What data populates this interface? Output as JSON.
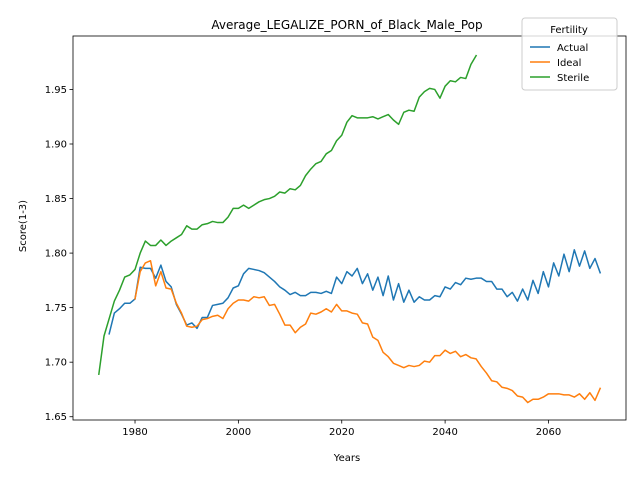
{
  "chart_data": {
    "type": "line",
    "title": "Average_LEGALIZE_PORN_of_Black_Male_Pop",
    "xlabel": "Years",
    "ylabel": "Score(1-3)",
    "xlim": [
      1968,
      2075
    ],
    "ylim": [
      1.647,
      1.999
    ],
    "xticks": [
      1980,
      2000,
      2020,
      2040,
      2060
    ],
    "yticks": [
      1.65,
      1.7,
      1.75,
      1.8,
      1.85,
      1.9,
      1.95
    ],
    "ytick_labels": [
      "1.65",
      "1.70",
      "1.75",
      "1.80",
      "1.85",
      "1.90",
      "1.95"
    ],
    "grid": false,
    "legend": {
      "title": "Fertility",
      "placement": "top-right"
    },
    "series": [
      {
        "name": "Actual",
        "color": "#1f77b4",
        "x": [
          1975,
          1976,
          1977,
          1978,
          1979,
          1980,
          1981,
          1982,
          1983,
          1984,
          1985,
          1986,
          1987,
          1988,
          1989,
          1990,
          1991,
          1992,
          1993,
          1994,
          1995,
          1996,
          1997,
          1998,
          1999,
          2000,
          2001,
          2002,
          2003,
          2004,
          2005,
          2006,
          2007,
          2008,
          2009,
          2010,
          2011,
          2012,
          2013,
          2014,
          2015,
          2016,
          2017,
          2018,
          2019,
          2020,
          2021,
          2022,
          2023,
          2024,
          2025,
          2026,
          2027,
          2028,
          2029,
          2030,
          2031,
          2032,
          2033,
          2034,
          2035,
          2036,
          2037,
          2038,
          2039,
          2040,
          2041,
          2042,
          2043,
          2044,
          2045,
          2046,
          2047,
          2048,
          2049,
          2050,
          2051,
          2052,
          2053,
          2054,
          2055,
          2056,
          2057,
          2058,
          2059,
          2060,
          2061,
          2062,
          2063,
          2064,
          2065,
          2066,
          2067,
          2068,
          2069,
          2070
        ],
        "values": [
          1.726,
          1.745,
          1.749,
          1.754,
          1.754,
          1.758,
          1.787,
          1.786,
          1.786,
          1.777,
          1.789,
          1.774,
          1.769,
          1.753,
          1.744,
          1.734,
          1.736,
          1.731,
          1.741,
          1.741,
          1.752,
          1.753,
          1.754,
          1.759,
          1.768,
          1.77,
          1.781,
          1.786,
          1.785,
          1.784,
          1.782,
          1.778,
          1.774,
          1.769,
          1.766,
          1.762,
          1.764,
          1.761,
          1.761,
          1.764,
          1.764,
          1.763,
          1.765,
          1.763,
          1.778,
          1.772,
          1.783,
          1.779,
          1.786,
          1.772,
          1.781,
          1.766,
          1.778,
          1.761,
          1.779,
          1.757,
          1.772,
          1.755,
          1.766,
          1.755,
          1.76,
          1.757,
          1.757,
          1.761,
          1.76,
          1.769,
          1.767,
          1.773,
          1.771,
          1.777,
          1.776,
          1.777,
          1.777,
          1.774,
          1.774,
          1.767,
          1.767,
          1.76,
          1.764,
          1.756,
          1.767,
          1.757,
          1.775,
          1.763,
          1.783,
          1.769,
          1.791,
          1.779,
          1.799,
          1.783,
          1.803,
          1.788,
          1.802,
          1.786,
          1.795,
          1.782
        ]
      },
      {
        "name": "Ideal",
        "color": "#ff7f0e",
        "x": [
          1980,
          1981,
          1982,
          1983,
          1984,
          1985,
          1986,
          1987,
          1988,
          1989,
          1990,
          1991,
          1992,
          1993,
          1994,
          1995,
          1996,
          1997,
          1998,
          1999,
          2000,
          2001,
          2002,
          2003,
          2004,
          2005,
          2006,
          2007,
          2008,
          2009,
          2010,
          2011,
          2012,
          2013,
          2014,
          2015,
          2016,
          2017,
          2018,
          2019,
          2020,
          2021,
          2022,
          2023,
          2024,
          2025,
          2026,
          2027,
          2028,
          2029,
          2030,
          2031,
          2032,
          2033,
          2034,
          2035,
          2036,
          2037,
          2038,
          2039,
          2040,
          2041,
          2042,
          2043,
          2044,
          2045,
          2046,
          2047,
          2048,
          2049,
          2050,
          2051,
          2052,
          2053,
          2054,
          2055,
          2056,
          2057,
          2058,
          2059,
          2060,
          2061,
          2062,
          2063,
          2064,
          2065,
          2066,
          2067,
          2068,
          2069,
          2070
        ],
        "values": [
          1.758,
          1.783,
          1.791,
          1.793,
          1.77,
          1.783,
          1.768,
          1.767,
          1.754,
          1.745,
          1.733,
          1.732,
          1.733,
          1.739,
          1.74,
          1.742,
          1.743,
          1.74,
          1.749,
          1.754,
          1.757,
          1.757,
          1.756,
          1.76,
          1.759,
          1.76,
          1.752,
          1.753,
          1.744,
          1.734,
          1.734,
          1.727,
          1.732,
          1.735,
          1.745,
          1.744,
          1.746,
          1.749,
          1.746,
          1.753,
          1.747,
          1.747,
          1.745,
          1.744,
          1.736,
          1.735,
          1.723,
          1.72,
          1.709,
          1.705,
          1.699,
          1.697,
          1.695,
          1.697,
          1.696,
          1.697,
          1.701,
          1.7,
          1.706,
          1.706,
          1.711,
          1.708,
          1.71,
          1.705,
          1.707,
          1.704,
          1.703,
          1.696,
          1.69,
          1.683,
          1.682,
          1.677,
          1.676,
          1.674,
          1.669,
          1.668,
          1.663,
          1.666,
          1.666,
          1.668,
          1.671,
          1.671,
          1.671,
          1.67,
          1.67,
          1.668,
          1.671,
          1.666,
          1.672,
          1.665,
          1.676
        ]
      },
      {
        "name": "Sterile",
        "color": "#2ca02c",
        "x": [
          1973,
          1974,
          1975,
          1976,
          1977,
          1978,
          1979,
          1980,
          1981,
          1982,
          1983,
          1984,
          1985,
          1986,
          1987,
          1988,
          1989,
          1990,
          1991,
          1992,
          1993,
          1994,
          1995,
          1996,
          1997,
          1998,
          1999,
          2000,
          2001,
          2002,
          2003,
          2004,
          2005,
          2006,
          2007,
          2008,
          2009,
          2010,
          2011,
          2012,
          2013,
          2014,
          2015,
          2016,
          2017,
          2018,
          2019,
          2020,
          2021,
          2022,
          2023,
          2024,
          2025,
          2026,
          2027,
          2028,
          2029,
          2030,
          2031,
          2032,
          2033,
          2034,
          2035,
          2036,
          2037,
          2038,
          2039,
          2040,
          2041,
          2042,
          2043,
          2044,
          2045,
          2046
        ],
        "values": [
          1.689,
          1.724,
          1.74,
          1.756,
          1.766,
          1.778,
          1.78,
          1.785,
          1.8,
          1.811,
          1.807,
          1.807,
          1.812,
          1.807,
          1.811,
          1.814,
          1.817,
          1.825,
          1.822,
          1.822,
          1.826,
          1.827,
          1.829,
          1.828,
          1.828,
          1.833,
          1.841,
          1.841,
          1.844,
          1.841,
          1.844,
          1.847,
          1.849,
          1.85,
          1.852,
          1.856,
          1.855,
          1.859,
          1.858,
          1.862,
          1.871,
          1.877,
          1.882,
          1.884,
          1.891,
          1.894,
          1.903,
          1.908,
          1.92,
          1.926,
          1.924,
          1.924,
          1.924,
          1.925,
          1.923,
          1.925,
          1.927,
          1.922,
          1.918,
          1.929,
          1.931,
          1.93,
          1.943,
          1.948,
          1.951,
          1.95,
          1.942,
          1.953,
          1.958,
          1.957,
          1.961,
          1.96,
          1.973,
          1.981
        ]
      }
    ]
  }
}
